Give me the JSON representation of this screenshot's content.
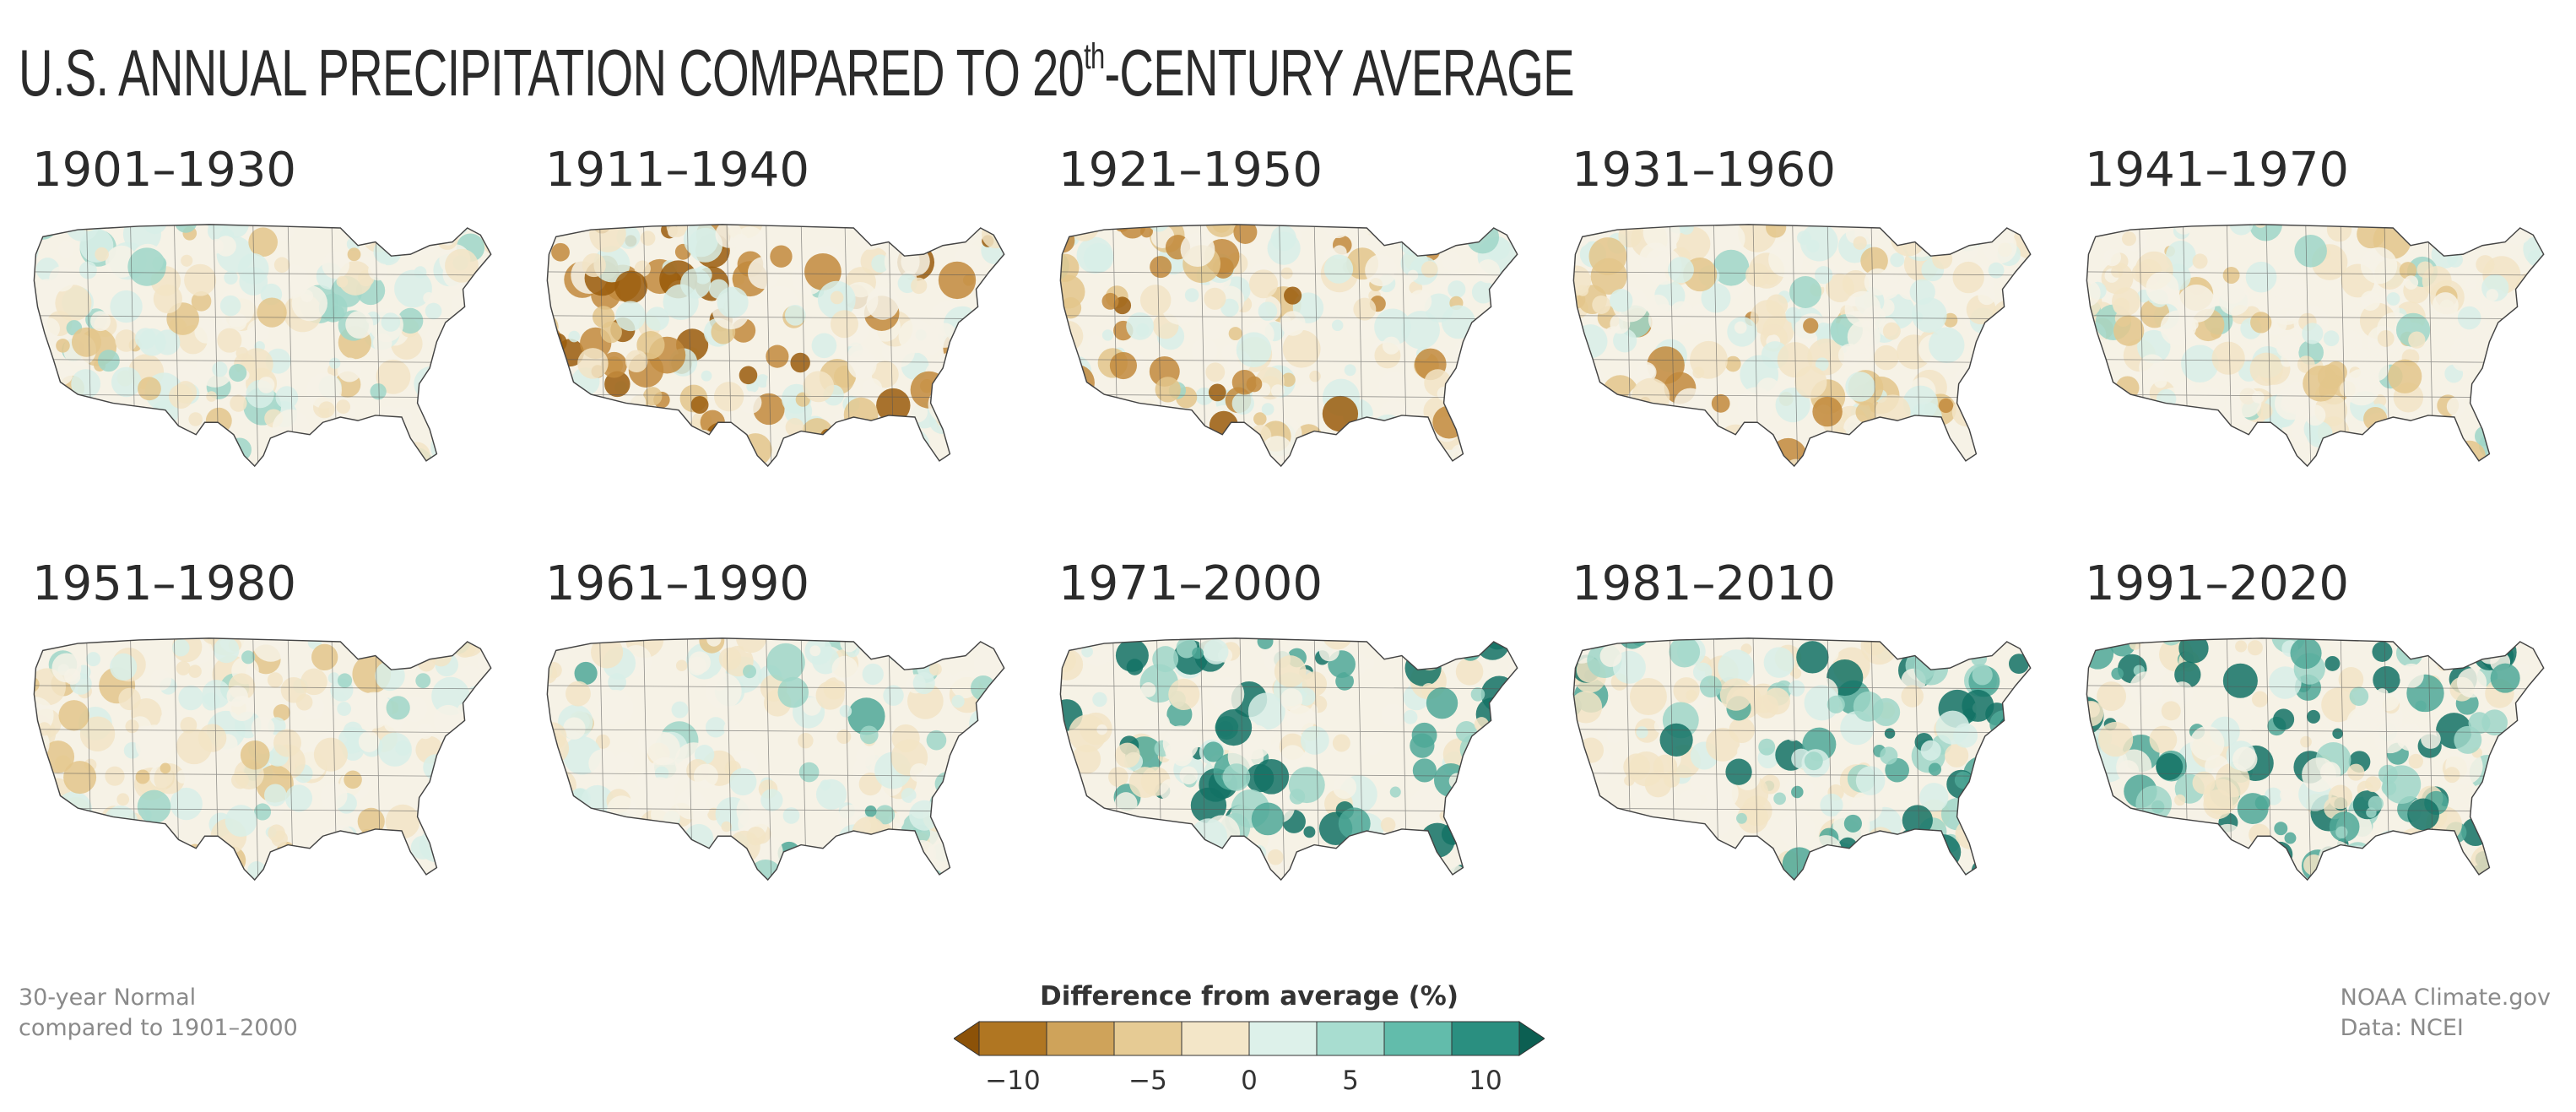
{
  "title_pre": "U.S. ANNUAL PRECIPITATION COMPARED TO 20",
  "title_sup": "th",
  "title_post": "-CENTURY AVERAGE",
  "panels": [
    {
      "label": "1901–1930",
      "wet": 0.45,
      "dry": 0.5
    },
    {
      "label": "1911–1940",
      "wet": 0.3,
      "dry": 0.8
    },
    {
      "label": "1921–1950",
      "wet": 0.3,
      "dry": 0.62
    },
    {
      "label": "1931–1960",
      "wet": 0.3,
      "dry": 0.6
    },
    {
      "label": "1941–1970",
      "wet": 0.4,
      "dry": 0.55
    },
    {
      "label": "1951–1980",
      "wet": 0.42,
      "dry": 0.5
    },
    {
      "label": "1961–1990",
      "wet": 0.55,
      "dry": 0.3
    },
    {
      "label": "1971–2000",
      "wet": 0.78,
      "dry": 0.18
    },
    {
      "label": "1981–2010",
      "wet": 0.8,
      "dry": 0.25
    },
    {
      "label": "1991–2020",
      "wet": 0.88,
      "dry": 0.25
    }
  ],
  "note": {
    "line1": "30-year Normal",
    "line2": "compared to 1901–2000"
  },
  "credit": {
    "line1": "NOAA Climate.gov",
    "line2": "Data: NCEI"
  },
  "legend": {
    "title": "Difference from average (%)",
    "ticks": [
      "−10",
      "−5",
      "0",
      "5",
      "10"
    ],
    "colors": [
      "#8c5208",
      "#b07622",
      "#cfa35a",
      "#e6cb94",
      "#f3e6c8",
      "#ddf1ea",
      "#a8ddd0",
      "#62bcab",
      "#2a8f80",
      "#0c5f52"
    ]
  },
  "map_palette": {
    "dry": [
      "#9a5c0c",
      "#c28a3c",
      "#e3c58b",
      "#f2e4c6"
    ],
    "neutral": "#f6f2e6",
    "wet": [
      "#d8efe8",
      "#9fd6c8",
      "#4fa898",
      "#137265"
    ]
  }
}
